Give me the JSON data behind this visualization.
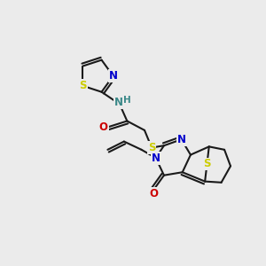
{
  "bg_color": "#ebebeb",
  "bond_color": "#1a1a1a",
  "bond_width": 1.5,
  "dbo": 0.13,
  "atom_colors": {
    "N": "#0000cc",
    "S": "#cccc00",
    "O": "#cc0000",
    "NH": "#3a8888"
  },
  "font_size": 8.5,
  "fig_width": 3.0,
  "fig_height": 3.0,
  "dpi": 100
}
